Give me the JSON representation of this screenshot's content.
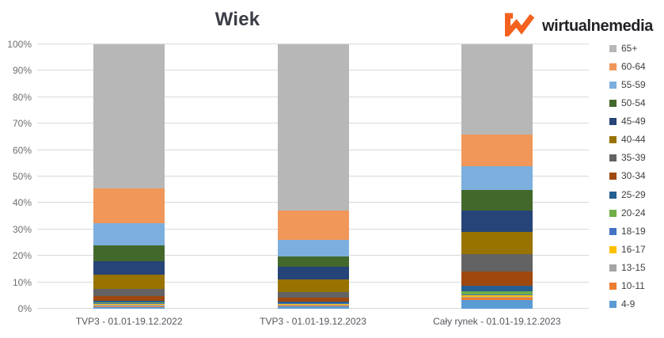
{
  "brand": {
    "name": "wirtualnemedia",
    "accent_color": "#F4611E",
    "text_color": "#222326",
    "icon": "wirtualnemedia-logo-icon"
  },
  "colors": {
    "background": "#ffffff",
    "title": "#3b3e46",
    "gridline": "#d9d9d9",
    "y_axis_label": "#6f6f6f",
    "x_axis_label": "#55575e",
    "legend_label": "#404040"
  },
  "chart_data": {
    "type": "bar",
    "subtype": "stacked-100-percent",
    "title": "Wiek",
    "xlabel": "",
    "ylabel": "",
    "ylim": [
      0,
      100
    ],
    "grid": true,
    "legend_position": "right",
    "y_ticks": [
      "0%",
      "10%",
      "20%",
      "30%",
      "40%",
      "50%",
      "60%",
      "70%",
      "80%",
      "90%",
      "100%"
    ],
    "categories": [
      "TVP3 - 01.01-19.12.2022",
      "TVP3 - 01.01-19.12.2023",
      "Cały rynek - 01.01-19.12.2023"
    ],
    "series_note": "values are percent of total, listed bottom-to-top in stack order; one value per category",
    "series": [
      {
        "name": "4-9",
        "color": "#5B9BD5",
        "values": [
          0.6,
          1.0,
          3.4
        ]
      },
      {
        "name": "10-11",
        "color": "#ED7D31",
        "values": [
          0.3,
          0.2,
          0.7
        ]
      },
      {
        "name": "13-15",
        "color": "#A5A5A5",
        "values": [
          0.5,
          0.2,
          0.5
        ]
      },
      {
        "name": "16-17",
        "color": "#FFC000",
        "values": [
          0.3,
          0.3,
          0.5
        ]
      },
      {
        "name": "18-19",
        "color": "#4472C4",
        "values": [
          0.3,
          0.3,
          0.4
        ]
      },
      {
        "name": "20-24",
        "color": "#70AD47",
        "values": [
          0.3,
          0.2,
          1.1
        ]
      },
      {
        "name": "25-29",
        "color": "#255E91",
        "values": [
          0.6,
          0.6,
          2.0
        ]
      },
      {
        "name": "30-34",
        "color": "#9E480E",
        "values": [
          1.8,
          1.4,
          5.6
        ]
      },
      {
        "name": "35-39",
        "color": "#636363",
        "values": [
          2.9,
          2.2,
          6.6
        ]
      },
      {
        "name": "40-44",
        "color": "#997300",
        "values": [
          5.4,
          4.6,
          8.3
        ]
      },
      {
        "name": "45-49",
        "color": "#264478",
        "values": [
          5.1,
          4.8,
          8.1
        ]
      },
      {
        "name": "50-54",
        "color": "#43682B",
        "values": [
          6.0,
          3.9,
          7.8
        ]
      },
      {
        "name": "55-59",
        "color": "#7CAFDD",
        "values": [
          8.3,
          6.5,
          9.0
        ]
      },
      {
        "name": "60-64",
        "color": "#F1975A",
        "values": [
          13.2,
          11.0,
          12.0
        ]
      },
      {
        "name": "65+",
        "color": "#B7B7B7",
        "values": [
          54.4,
          62.8,
          34.0
        ]
      }
    ]
  }
}
